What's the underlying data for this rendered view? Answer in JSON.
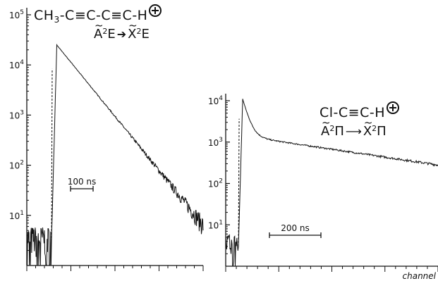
{
  "chart_data": [
    {
      "type": "line",
      "formula": "CH3-C≡C-C≡C-H",
      "transition": "A²E→X²E",
      "scale_bar_label": "100 ns",
      "yscale": "log",
      "ylim": [
        1,
        100000
      ],
      "y_ticks": [
        {
          "value": 100000,
          "label": "10^5"
        },
        {
          "value": 10000,
          "label": "10^4"
        },
        {
          "value": 1000,
          "label": "10^3"
        },
        {
          "value": 100,
          "label": "10^2"
        },
        {
          "value": 10,
          "label": "10^1"
        }
      ],
      "x_range": [
        0,
        100
      ],
      "rise_channel": 14,
      "peak": {
        "x": 17,
        "y": 25000
      },
      "decay_end": {
        "x": 98,
        "y": 8
      },
      "noise_floor": 3
    },
    {
      "type": "line",
      "formula": "Cl-C≡C-H",
      "transition": "A²Π→X²Π",
      "scale_bar_label": "200 ns",
      "xlabel": "channel",
      "yscale": "log",
      "ylim": [
        1,
        10000
      ],
      "y_ticks": [
        {
          "value": 10000,
          "label": "10^4"
        },
        {
          "value": 1000,
          "label": "10^3"
        },
        {
          "value": 100,
          "label": "10^2"
        },
        {
          "value": 10,
          "label": "10^1"
        }
      ],
      "x_range": [
        0,
        100
      ],
      "rise_channel": 6,
      "peak": {
        "x": 8,
        "y": 11000
      },
      "decay_end": {
        "x": 100,
        "y": 280
      },
      "noise_floor": 3
    }
  ],
  "labels": {
    "left_formula": {
      "a": "CH",
      "sub": "3",
      "b": "-C≡C-C≡C-H"
    },
    "left_transition": {
      "upper": "A",
      "upper_sup": "2",
      "upper_term": "E",
      "lower": "X",
      "lower_sup": "2",
      "lower_term": "E"
    },
    "right_formula": {
      "a": "Cl-C≡C-H"
    },
    "right_transition": {
      "upper": "A",
      "upper_sup": "2",
      "upper_term": "Π",
      "lower": "X",
      "lower_sup": "2",
      "lower_term": "Π"
    },
    "plus_icon": "plus-circle-icon",
    "arrow_icon": "right-arrow-icon"
  },
  "colors": {
    "ink": "#111111",
    "background": "#ffffff"
  }
}
